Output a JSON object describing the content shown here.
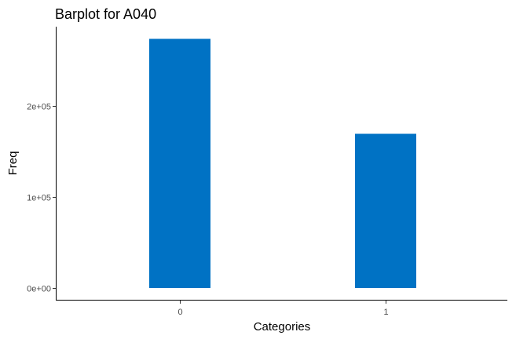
{
  "chart_data": {
    "type": "bar",
    "title": "Barplot for A040",
    "xlabel": "Categories",
    "ylabel": "Freq",
    "categories": [
      "0",
      "1"
    ],
    "values": [
      273500,
      169500
    ],
    "ylim": [
      0,
      290000
    ],
    "yticks": [
      0,
      100000,
      200000
    ],
    "ytick_labels": [
      "0e+00",
      "1e+05",
      "2e+05"
    ],
    "bar_color": "#0072C4",
    "grid": false,
    "legend": "none"
  }
}
